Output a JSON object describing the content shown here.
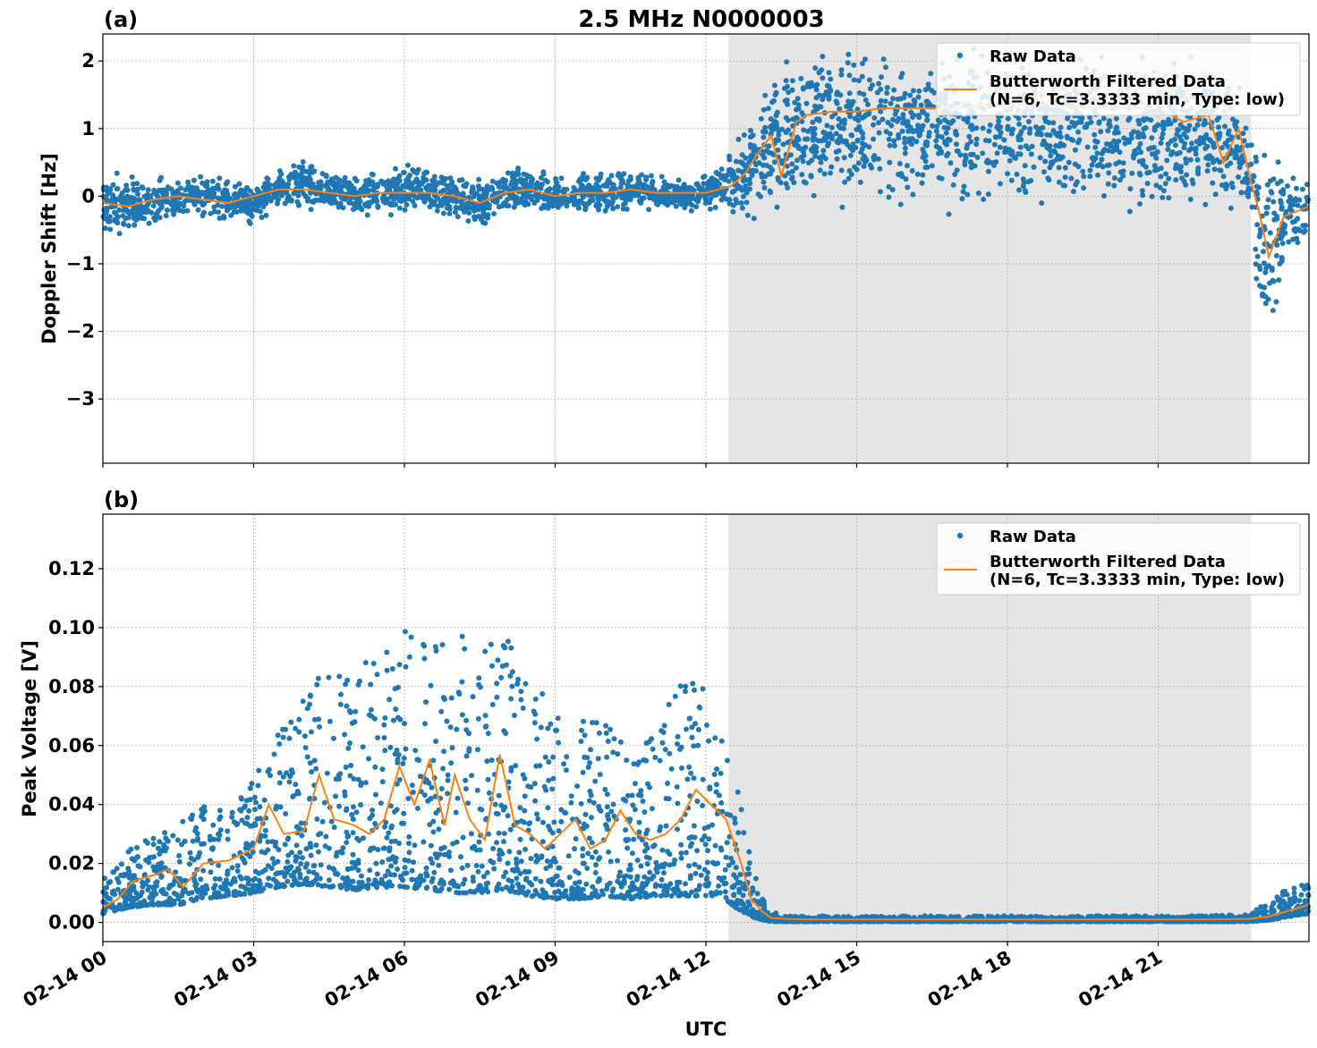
{
  "figure": {
    "title": "2.5 MHz N0000003",
    "xlabel": "UTC"
  },
  "colors": {
    "raw": "#1f77b4",
    "filtered": "#ff7f0e",
    "night_shade": "#e5e5e5",
    "grid": "#b0b0b0"
  },
  "chart_data": [
    {
      "type": "scatter",
      "panel_label": "(a)",
      "ylabel": "Doppler Shift [Hz]",
      "xlim": [
        "02-14 00:00",
        "02-14 24:00"
      ],
      "ylim": [
        -3.95,
        2.4
      ],
      "x_ticks": [
        "02-14 00",
        "02-14 03",
        "02-14 06",
        "02-14 09",
        "02-14 12",
        "02-14 15",
        "02-14 18",
        "02-14 21"
      ],
      "y_ticks": [
        "2",
        "1",
        "0",
        "−1",
        "−2",
        "−3"
      ],
      "y_tick_values": [
        2,
        1,
        0,
        -1,
        -2,
        -3
      ],
      "x_labels_shown": false,
      "shaded_region_hours": [
        12.45,
        22.85
      ],
      "legend": {
        "position": "top-right",
        "entries": [
          "Raw Data",
          "Butterworth Filtered Data",
          "(N=6, Tc=3.3333 min, Type: low)"
        ]
      },
      "series": [
        {
          "name": "Raw Data",
          "kind": "scatter",
          "x_hours": [
            0,
            0.5,
            1,
            1.5,
            2,
            2.5,
            3,
            3.5,
            4,
            4.5,
            5,
            5.5,
            6,
            6.5,
            7,
            7.5,
            8,
            8.5,
            9,
            9.5,
            10,
            10.5,
            11,
            11.5,
            12,
            12.5,
            13,
            13.5,
            14,
            14.5,
            15,
            15.5,
            16,
            16.5,
            17,
            17.5,
            18,
            18.5,
            19,
            19.5,
            20,
            20.5,
            21,
            21.5,
            22,
            22.5,
            22.8,
            23,
            23.2,
            23.5,
            24
          ],
          "center": [
            -0.15,
            -0.1,
            -0.15,
            -0.05,
            0.0,
            -0.05,
            -0.1,
            0.1,
            0.15,
            0.1,
            0.0,
            0.05,
            0.1,
            0.05,
            0.0,
            -0.1,
            0.05,
            0.1,
            0.0,
            0.05,
            0.05,
            0.1,
            0.05,
            0.0,
            0.05,
            0.2,
            0.5,
            0.9,
            1.0,
            1.05,
            1.0,
            1.05,
            1.05,
            1.05,
            1.0,
            1.0,
            1.0,
            1.0,
            1.0,
            1.0,
            1.0,
            0.95,
            0.95,
            0.95,
            0.9,
            0.8,
            0.5,
            -0.6,
            -0.9,
            -0.3,
            -0.2
          ],
          "spread": [
            0.3,
            0.25,
            0.25,
            0.2,
            0.2,
            0.2,
            0.2,
            0.2,
            0.25,
            0.2,
            0.2,
            0.2,
            0.25,
            0.2,
            0.2,
            0.25,
            0.2,
            0.2,
            0.2,
            0.2,
            0.2,
            0.2,
            0.15,
            0.15,
            0.15,
            0.25,
            0.5,
            0.7,
            0.7,
            0.7,
            0.7,
            0.7,
            0.7,
            0.7,
            0.7,
            0.7,
            0.7,
            0.7,
            0.7,
            0.7,
            0.7,
            0.7,
            0.7,
            0.7,
            0.7,
            0.7,
            0.7,
            0.9,
            0.9,
            0.5,
            0.3
          ]
        },
        {
          "name": "Butterworth Filtered Data",
          "kind": "line",
          "x_hours": [
            0,
            0.5,
            1,
            1.5,
            2,
            2.5,
            3,
            3.5,
            4,
            4.5,
            5,
            5.5,
            6,
            6.5,
            7,
            7.5,
            8,
            8.5,
            9,
            9.5,
            10,
            10.5,
            11,
            11.5,
            12,
            12.5,
            12.8,
            13,
            13.3,
            13.5,
            13.8,
            14,
            14.5,
            15,
            15.5,
            16,
            16.5,
            17,
            17.5,
            18,
            18.5,
            19,
            19.5,
            20,
            20.5,
            21,
            21.5,
            22,
            22.3,
            22.6,
            22.85,
            23,
            23.2,
            23.5,
            24
          ],
          "values": [
            -0.1,
            -0.15,
            -0.05,
            0.0,
            -0.05,
            -0.1,
            0.0,
            0.1,
            0.1,
            0.05,
            0.0,
            0.05,
            0.05,
            0.05,
            0.0,
            -0.1,
            0.05,
            0.1,
            0.0,
            0.05,
            0.05,
            0.1,
            0.05,
            0.05,
            0.05,
            0.15,
            0.35,
            0.6,
            0.9,
            0.3,
            1.1,
            1.2,
            1.25,
            1.25,
            1.3,
            1.3,
            1.3,
            1.3,
            1.35,
            1.35,
            1.35,
            1.35,
            1.3,
            1.3,
            1.3,
            1.3,
            1.1,
            1.2,
            0.5,
            1.0,
            0.2,
            -0.2,
            -0.9,
            -0.3,
            -0.15
          ]
        }
      ]
    },
    {
      "type": "scatter",
      "panel_label": "(b)",
      "ylabel": "Peak Voltage [V]",
      "xlabel": "UTC",
      "xlim": [
        "02-14 00:00",
        "02-14 24:00"
      ],
      "ylim": [
        -0.0065,
        0.1385
      ],
      "x_ticks": [
        "02-14 00",
        "02-14 03",
        "02-14 06",
        "02-14 09",
        "02-14 12",
        "02-14 15",
        "02-14 18",
        "02-14 21"
      ],
      "y_ticks": [
        "0.12",
        "0.10",
        "0.08",
        "0.06",
        "0.04",
        "0.02",
        "0.00"
      ],
      "y_tick_values": [
        0.12,
        0.1,
        0.08,
        0.06,
        0.04,
        0.02,
        0.0
      ],
      "x_labels_shown": true,
      "shaded_region_hours": [
        12.45,
        22.85
      ],
      "legend": {
        "position": "top-right",
        "entries": [
          "Raw Data",
          "Butterworth Filtered Data",
          "(N=6, Tc=3.3333 min, Type: low)"
        ]
      },
      "series": [
        {
          "name": "Raw Data",
          "kind": "scatter",
          "x_hours": [
            0,
            0.5,
            1,
            1.5,
            2,
            2.5,
            3,
            3.5,
            4,
            4.5,
            5,
            5.5,
            6,
            6.5,
            7,
            7.5,
            8,
            8.5,
            9,
            9.5,
            10,
            10.5,
            11,
            11.5,
            12,
            12.3,
            12.6,
            12.9,
            13.2,
            13.5,
            14,
            15,
            16,
            17,
            18,
            19,
            20,
            21,
            22,
            22.8,
            23,
            23.3,
            23.6,
            24
          ],
          "low": [
            0.003,
            0.005,
            0.006,
            0.006,
            0.008,
            0.009,
            0.01,
            0.012,
            0.013,
            0.012,
            0.011,
            0.012,
            0.012,
            0.011,
            0.01,
            0.01,
            0.011,
            0.009,
            0.008,
            0.008,
            0.009,
            0.008,
            0.009,
            0.009,
            0.009,
            0.009,
            0.005,
            0.002,
            0.0005,
            0.0003,
            0.0003,
            0.0003,
            0.0003,
            0.0003,
            0.0003,
            0.0003,
            0.0003,
            0.0003,
            0.0003,
            0.0003,
            0.0005,
            0.001,
            0.002,
            0.003
          ],
          "high": [
            0.015,
            0.025,
            0.03,
            0.035,
            0.04,
            0.04,
            0.05,
            0.065,
            0.08,
            0.085,
            0.09,
            0.09,
            0.1,
            0.095,
            0.1,
            0.09,
            0.1,
            0.08,
            0.075,
            0.07,
            0.07,
            0.06,
            0.065,
            0.085,
            0.08,
            0.065,
            0.05,
            0.02,
            0.005,
            0.0025,
            0.0022,
            0.0022,
            0.0022,
            0.0022,
            0.0022,
            0.0022,
            0.0022,
            0.0022,
            0.0022,
            0.003,
            0.005,
            0.008,
            0.012,
            0.013
          ]
        },
        {
          "name": "Butterworth Filtered Data",
          "kind": "line",
          "x_hours": [
            0,
            0.3,
            0.6,
            1,
            1.3,
            1.6,
            2,
            2.5,
            3,
            3.3,
            3.6,
            4,
            4.3,
            4.6,
            5,
            5.3,
            5.6,
            5.9,
            6.2,
            6.5,
            6.8,
            7,
            7.3,
            7.6,
            7.9,
            8.2,
            8.5,
            8.8,
            9.1,
            9.4,
            9.7,
            10,
            10.3,
            10.6,
            10.9,
            11.2,
            11.5,
            11.8,
            12.1,
            12.4,
            12.7,
            12.9,
            13.1,
            13.3,
            13.6,
            14,
            15,
            16,
            17,
            18,
            19,
            20,
            21,
            22,
            22.8,
            23.2,
            23.6,
            24
          ],
          "values": [
            0.005,
            0.008,
            0.014,
            0.016,
            0.018,
            0.012,
            0.02,
            0.021,
            0.025,
            0.04,
            0.03,
            0.031,
            0.05,
            0.035,
            0.033,
            0.03,
            0.035,
            0.053,
            0.04,
            0.055,
            0.033,
            0.05,
            0.035,
            0.028,
            0.057,
            0.033,
            0.03,
            0.025,
            0.03,
            0.035,
            0.025,
            0.028,
            0.038,
            0.03,
            0.028,
            0.03,
            0.035,
            0.045,
            0.04,
            0.035,
            0.02,
            0.008,
            0.004,
            0.0015,
            0.0012,
            0.001,
            0.001,
            0.001,
            0.001,
            0.001,
            0.001,
            0.001,
            0.001,
            0.001,
            0.0012,
            0.002,
            0.004,
            0.006
          ]
        }
      ]
    }
  ]
}
